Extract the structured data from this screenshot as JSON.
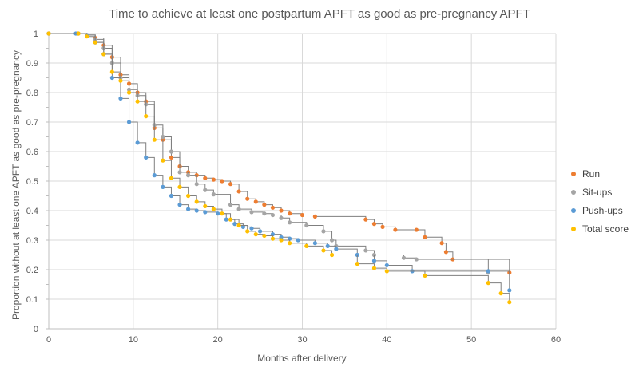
{
  "chart_data": {
    "type": "line",
    "title": "Time to achieve at least one postpartum APFT as good as pre-pregnancy APFT",
    "xlabel": "Months after delivery",
    "ylabel": "Proportion without at least one APFT as good as pre-pregnancy",
    "xlim": [
      0,
      60
    ],
    "ylim": [
      0,
      1
    ],
    "x_ticks": [
      "0",
      "10",
      "20",
      "30",
      "40",
      "50",
      "60"
    ],
    "y_ticks": [
      "0",
      "0.1",
      "0.2",
      "0.3",
      "0.4",
      "0.5",
      "0.6",
      "0.7",
      "0.8",
      "0.9",
      "1"
    ],
    "grid": true,
    "legend_position": "right",
    "series": [
      {
        "name": "Run",
        "color": "#ED7D31",
        "points": [
          [
            0,
            1
          ],
          [
            3.5,
            1
          ],
          [
            4.5,
            0.995
          ],
          [
            5.5,
            0.985
          ],
          [
            6.5,
            0.96
          ],
          [
            7.5,
            0.92
          ],
          [
            8.5,
            0.86
          ],
          [
            9.5,
            0.83
          ],
          [
            10.5,
            0.8
          ],
          [
            11.5,
            0.77
          ],
          [
            12.5,
            0.68
          ],
          [
            13.5,
            0.64
          ],
          [
            14.5,
            0.58
          ],
          [
            15.5,
            0.55
          ],
          [
            16.5,
            0.53
          ],
          [
            17.5,
            0.52
          ],
          [
            18.5,
            0.51
          ],
          [
            19.5,
            0.505
          ],
          [
            20.5,
            0.5
          ],
          [
            21.5,
            0.49
          ],
          [
            22.5,
            0.465
          ],
          [
            23.5,
            0.44
          ],
          [
            24.5,
            0.43
          ],
          [
            25.5,
            0.42
          ],
          [
            26.5,
            0.41
          ],
          [
            27.5,
            0.4
          ],
          [
            28.5,
            0.39
          ],
          [
            30,
            0.385
          ],
          [
            31.5,
            0.38
          ],
          [
            37.5,
            0.37
          ],
          [
            38.5,
            0.355
          ],
          [
            39.5,
            0.345
          ],
          [
            41,
            0.335
          ],
          [
            43.5,
            0.335
          ],
          [
            44.5,
            0.31
          ],
          [
            46.5,
            0.29
          ],
          [
            47,
            0.26
          ],
          [
            47.8,
            0.235
          ],
          [
            54.5,
            0.19
          ]
        ]
      },
      {
        "name": "Sit-ups",
        "color": "#A5A5A5",
        "points": [
          [
            0,
            1
          ],
          [
            3.5,
            1
          ],
          [
            4.5,
            0.995
          ],
          [
            5.5,
            0.98
          ],
          [
            6.5,
            0.95
          ],
          [
            7.5,
            0.9
          ],
          [
            8.5,
            0.85
          ],
          [
            9.5,
            0.81
          ],
          [
            10.5,
            0.79
          ],
          [
            11.5,
            0.76
          ],
          [
            12.5,
            0.69
          ],
          [
            13.5,
            0.65
          ],
          [
            14.5,
            0.6
          ],
          [
            15.5,
            0.53
          ],
          [
            16.5,
            0.52
          ],
          [
            17.5,
            0.49
          ],
          [
            18.5,
            0.47
          ],
          [
            19.5,
            0.455
          ],
          [
            21.5,
            0.42
          ],
          [
            22.5,
            0.405
          ],
          [
            24,
            0.395
          ],
          [
            25.5,
            0.39
          ],
          [
            26.5,
            0.385
          ],
          [
            27.5,
            0.375
          ],
          [
            28.5,
            0.36
          ],
          [
            30.5,
            0.35
          ],
          [
            32.5,
            0.33
          ],
          [
            33.5,
            0.3
          ],
          [
            34,
            0.28
          ],
          [
            37.5,
            0.265
          ],
          [
            38.5,
            0.25
          ],
          [
            42,
            0.24
          ],
          [
            43.5,
            0.235
          ],
          [
            52,
            0.19
          ]
        ]
      },
      {
        "name": "Push-ups",
        "color": "#5B9BD5",
        "points": [
          [
            0,
            1
          ],
          [
            3.2,
            1
          ],
          [
            4.5,
            0.995
          ],
          [
            5.5,
            0.97
          ],
          [
            6.5,
            0.93
          ],
          [
            7.5,
            0.85
          ],
          [
            8.5,
            0.78
          ],
          [
            9.5,
            0.7
          ],
          [
            10.5,
            0.63
          ],
          [
            11.5,
            0.58
          ],
          [
            12.5,
            0.52
          ],
          [
            13.5,
            0.48
          ],
          [
            14.5,
            0.45
          ],
          [
            15.5,
            0.42
          ],
          [
            16.5,
            0.405
          ],
          [
            17.5,
            0.4
          ],
          [
            18.5,
            0.395
          ],
          [
            20,
            0.39
          ],
          [
            21,
            0.37
          ],
          [
            22,
            0.355
          ],
          [
            23,
            0.345
          ],
          [
            24,
            0.34
          ],
          [
            25,
            0.33
          ],
          [
            26.5,
            0.32
          ],
          [
            27.5,
            0.31
          ],
          [
            28.5,
            0.305
          ],
          [
            29.5,
            0.3
          ],
          [
            31.5,
            0.29
          ],
          [
            33,
            0.28
          ],
          [
            34,
            0.27
          ],
          [
            36.5,
            0.25
          ],
          [
            38.5,
            0.23
          ],
          [
            40,
            0.215
          ],
          [
            43,
            0.195
          ],
          [
            52,
            0.195
          ],
          [
            54.5,
            0.13
          ]
        ]
      },
      {
        "name": "Total score",
        "color": "#FFC000",
        "points": [
          [
            0,
            1
          ],
          [
            3.5,
            1
          ],
          [
            4.5,
            0.99
          ],
          [
            5.5,
            0.97
          ],
          [
            6.5,
            0.93
          ],
          [
            7.5,
            0.87
          ],
          [
            8.5,
            0.84
          ],
          [
            9.5,
            0.8
          ],
          [
            10.5,
            0.77
          ],
          [
            11.5,
            0.72
          ],
          [
            12.5,
            0.64
          ],
          [
            13.5,
            0.57
          ],
          [
            14.5,
            0.51
          ],
          [
            15.5,
            0.48
          ],
          [
            16.5,
            0.45
          ],
          [
            17.5,
            0.43
          ],
          [
            18.5,
            0.415
          ],
          [
            19.5,
            0.405
          ],
          [
            20.5,
            0.39
          ],
          [
            21.5,
            0.37
          ],
          [
            22.5,
            0.35
          ],
          [
            23.5,
            0.33
          ],
          [
            24.5,
            0.32
          ],
          [
            25.5,
            0.315
          ],
          [
            26.5,
            0.305
          ],
          [
            27.5,
            0.3
          ],
          [
            28.5,
            0.29
          ],
          [
            30.5,
            0.28
          ],
          [
            32.5,
            0.265
          ],
          [
            33.5,
            0.25
          ],
          [
            36.5,
            0.22
          ],
          [
            38.5,
            0.205
          ],
          [
            40,
            0.195
          ],
          [
            44.5,
            0.18
          ],
          [
            52,
            0.155
          ],
          [
            53.5,
            0.12
          ],
          [
            54.5,
            0.09
          ]
        ]
      }
    ]
  }
}
